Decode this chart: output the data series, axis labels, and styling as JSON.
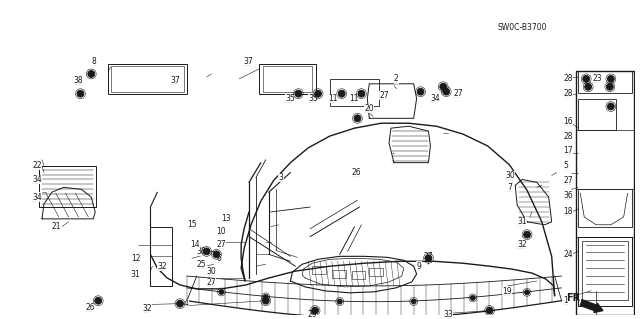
{
  "background_color": "#ffffff",
  "diagram_color": "#1a1a1a",
  "fig_width": 6.4,
  "fig_height": 3.19,
  "dpi": 100,
  "label_swoc": "SW0C-B3700",
  "label_fr": "FR.",
  "font_size": 5.5,
  "font_size_large": 7.0
}
